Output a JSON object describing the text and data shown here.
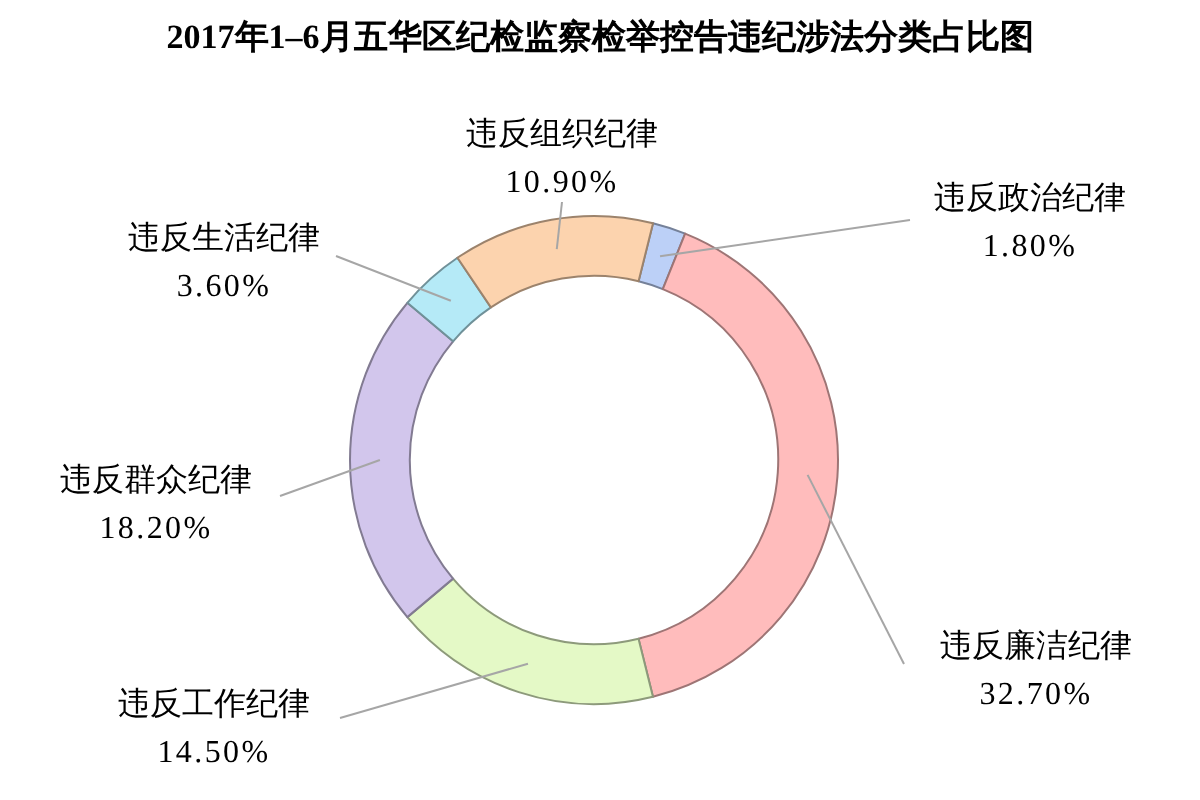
{
  "chart_data": {
    "type": "donut",
    "title": "2017年1–6月五华区纪检监察检举控告违纪涉法分类占比图",
    "categories": [
      "违反政治纪律",
      "违反廉洁纪律",
      "违反工作纪律",
      "违反群众纪律",
      "违反生活纪律",
      "违反组织纪律"
    ],
    "values": [
      1.8,
      32.7,
      14.5,
      18.2,
      3.6,
      10.9
    ],
    "colors": [
      "#bcd0f7",
      "#ffbcbc",
      "#e4f9c6",
      "#d2c6ec",
      "#b5eaf7",
      "#fcd3ae"
    ],
    "value_labels": [
      "1.80%",
      "32.70%",
      "14.50%",
      "18.20%",
      "3.60%",
      "10.90%"
    ]
  }
}
